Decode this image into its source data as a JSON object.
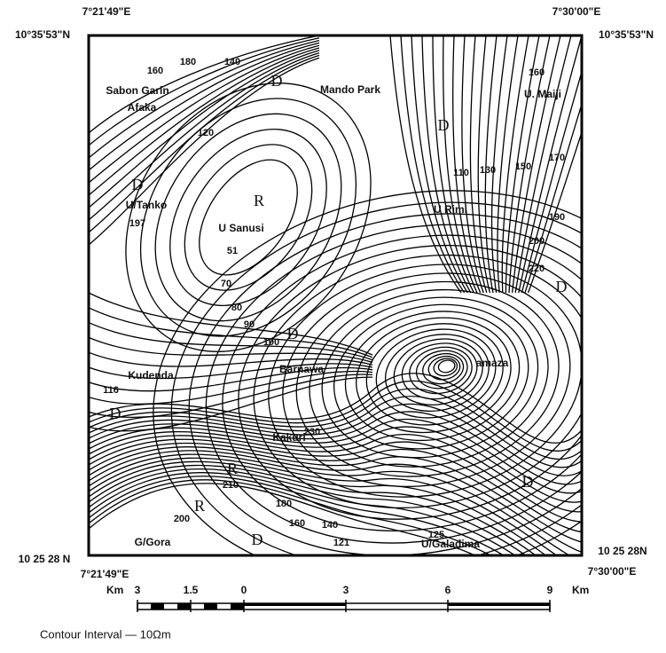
{
  "coordinates": {
    "top_left_lon": "7°21'49\"E",
    "top_left_lat": "10°35'53\"N",
    "top_right_lon": "7°30'00\"E",
    "top_right_lat": "10°35'53\"N",
    "bottom_left_lat": "10 25 28 N",
    "bottom_left_lon": "7°21'49\"E",
    "bottom_right_lat": "10 25 28N",
    "bottom_right_lon": "7°30'00\"E"
  },
  "places": [
    "Sabon Garin",
    "Afaka",
    "Mando Park",
    "U. Maiji",
    "U/Tanko",
    "U Sanusi",
    "U Rimi",
    "Kudenda",
    "Barnawa",
    "Kakuri",
    "G/Gora",
    "U/Galadima",
    "amaza"
  ],
  "zones": [
    "D",
    "D",
    "D",
    "R",
    "D",
    "D",
    "R",
    "R",
    "D",
    "D",
    "D"
  ],
  "contour_labels": [
    "160",
    "180",
    "140",
    "120",
    "110",
    "130",
    "150",
    "170",
    "190",
    "200",
    "220",
    "197",
    "51",
    "70",
    "80",
    "90",
    "100",
    "116",
    "230",
    "210",
    "200",
    "180",
    "160",
    "140",
    "125",
    "121",
    "160"
  ],
  "scale": {
    "unit_left": "Km",
    "ticks": [
      "3",
      "1.5",
      "0",
      "3",
      "6",
      "9"
    ],
    "unit_right": "Km"
  },
  "legend": "Contour Interval — 10Ωm"
}
